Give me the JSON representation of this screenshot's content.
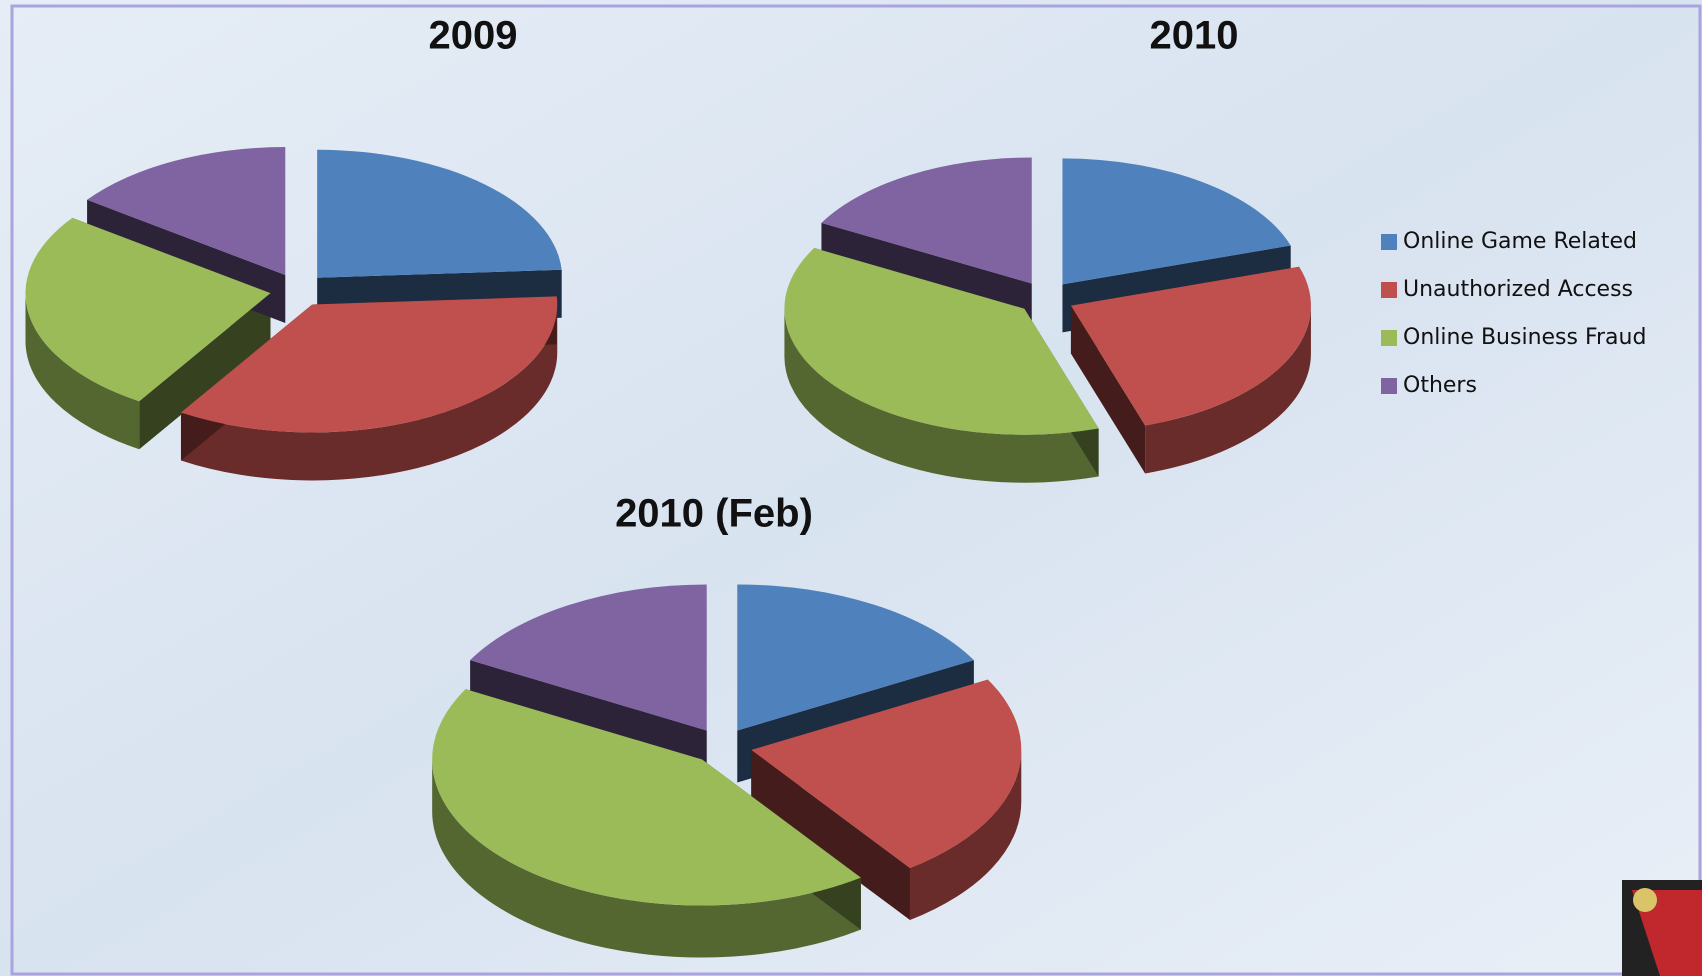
{
  "chart_data": [
    {
      "type": "pie3d",
      "title": "2009",
      "categories": [
        "Online Game Related",
        "Unauthorized Access",
        "Online Business Fraud",
        "Others"
      ],
      "values": [
        24,
        35,
        26,
        15
      ],
      "colors": [
        "#4f81bd",
        "#c0504d",
        "#9bbb59",
        "#8064a2"
      ]
    },
    {
      "type": "pie3d",
      "title": "2010",
      "categories": [
        "Online Game Related",
        "Unauthorized Access",
        "Online Business Fraud",
        "Others"
      ],
      "values": [
        20,
        25,
        38,
        17
      ],
      "colors": [
        "#4f81bd",
        "#c0504d",
        "#9bbb59",
        "#8064a2"
      ]
    },
    {
      "type": "pie3d",
      "title": "2010 (Feb)",
      "categories": [
        "Online Game Related",
        "Unauthorized Access",
        "Online Business Fraud",
        "Others"
      ],
      "values": [
        17,
        23,
        43,
        17
      ],
      "colors": [
        "#4f81bd",
        "#c0504d",
        "#9bbb59",
        "#8064a2"
      ]
    }
  ]
}
